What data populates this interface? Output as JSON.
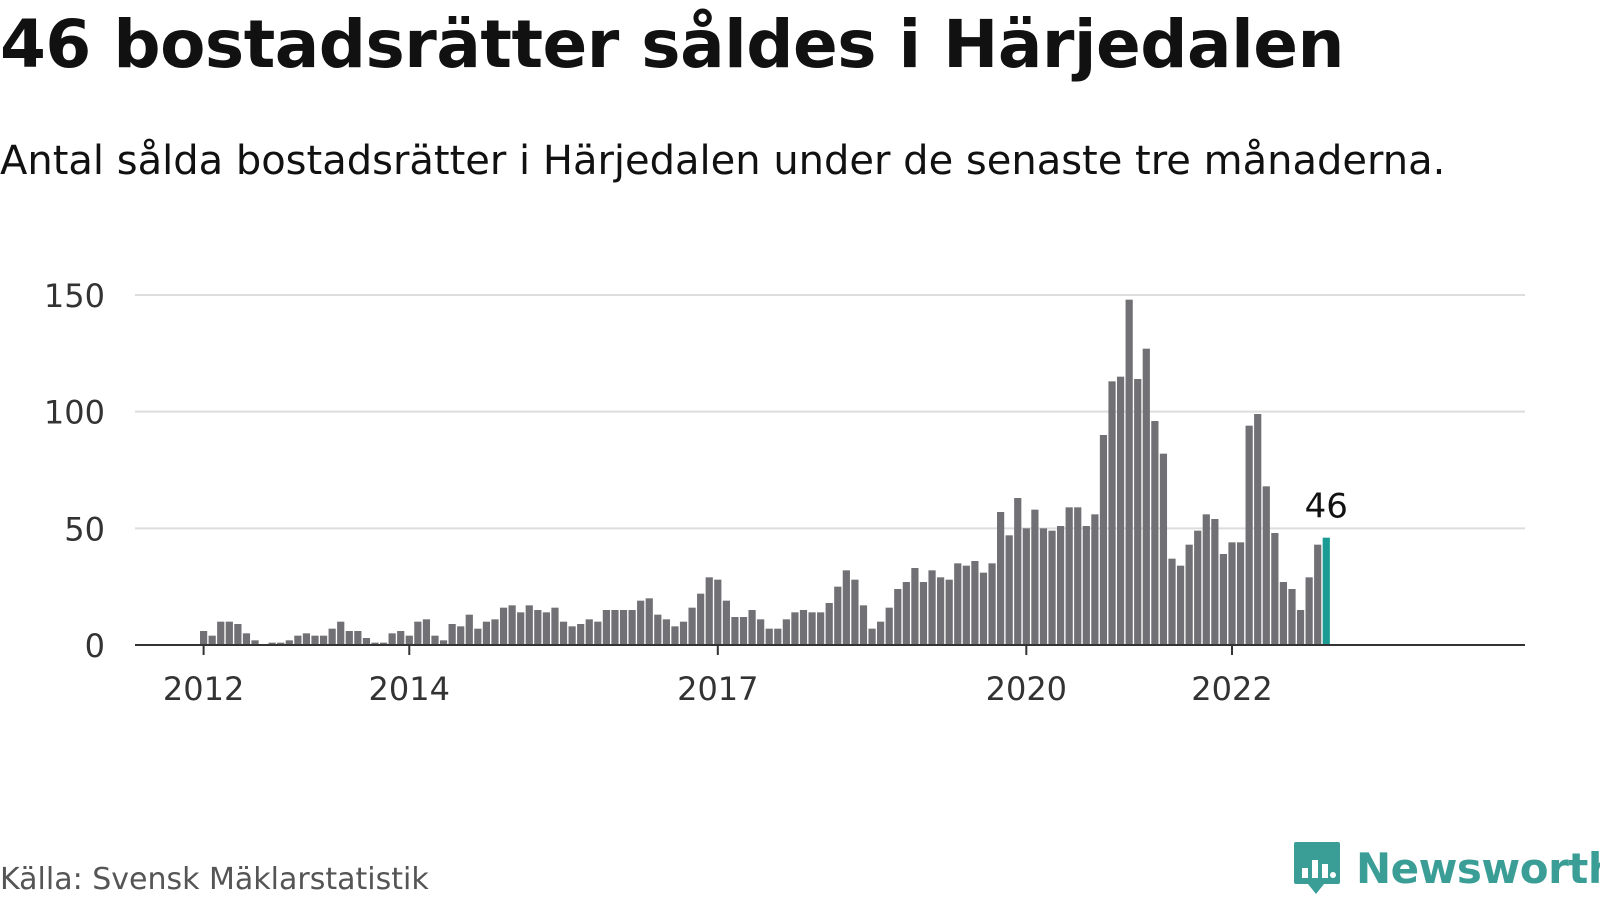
{
  "title": "46 bostadsrätter såldes i Härjedalen",
  "subtitle": "Antal sålda bostadsrätter i Härjedalen under de senaste tre månaderna.",
  "source": "Källa: Svensk Mäklarstatistik",
  "brand": {
    "name": "Newsworthy",
    "icon": "newsworthy-chart-icon"
  },
  "colors": {
    "bar": "#707075",
    "highlight": "#1a9c94",
    "grid": "#dddddd",
    "axis": "#333333"
  },
  "chart_data": {
    "type": "bar",
    "title": "46 bostadsrätter såldes i Härjedalen",
    "subtitle": "Antal sålda bostadsrätter i Härjedalen under de senaste tre månaderna.",
    "xlabel": "",
    "ylabel": "",
    "ylim": [
      0,
      150
    ],
    "y_ticks": [
      0,
      50,
      100,
      150
    ],
    "x_ticks": [
      {
        "label": "2012",
        "index": 0
      },
      {
        "label": "2014",
        "index": 24
      },
      {
        "label": "2017",
        "index": 60
      },
      {
        "label": "2020",
        "index": 96
      },
      {
        "label": "2022",
        "index": 120
      }
    ],
    "grid": true,
    "start": "2012-01",
    "frequency": "monthly",
    "values": [
      6,
      4,
      10,
      10,
      9,
      5,
      2,
      0,
      1,
      1,
      2,
      4,
      5,
      4,
      4,
      7,
      10,
      6,
      6,
      3,
      1,
      1,
      5,
      6,
      4,
      10,
      11,
      4,
      2,
      9,
      8,
      13,
      7,
      10,
      11,
      16,
      17,
      14,
      17,
      15,
      14,
      16,
      10,
      8,
      9,
      11,
      10,
      15,
      15,
      15,
      15,
      19,
      20,
      13,
      11,
      8,
      10,
      16,
      22,
      29,
      28,
      19,
      12,
      12,
      15,
      11,
      7,
      7,
      11,
      14,
      15,
      14,
      14,
      18,
      25,
      32,
      28,
      17,
      7,
      10,
      16,
      24,
      27,
      33,
      27,
      32,
      29,
      28,
      35,
      34,
      36,
      31,
      35,
      57,
      47,
      63,
      50,
      58,
      50,
      49,
      51,
      59,
      59,
      51,
      56,
      90,
      113,
      115,
      148,
      114,
      127,
      96,
      82,
      37,
      34,
      43,
      49,
      56,
      54,
      39,
      44,
      44,
      94,
      99,
      68,
      48,
      27,
      24,
      15,
      29,
      43,
      46
    ],
    "highlight_last": true,
    "annotations": [
      {
        "text": "46",
        "target": "last"
      }
    ]
  }
}
